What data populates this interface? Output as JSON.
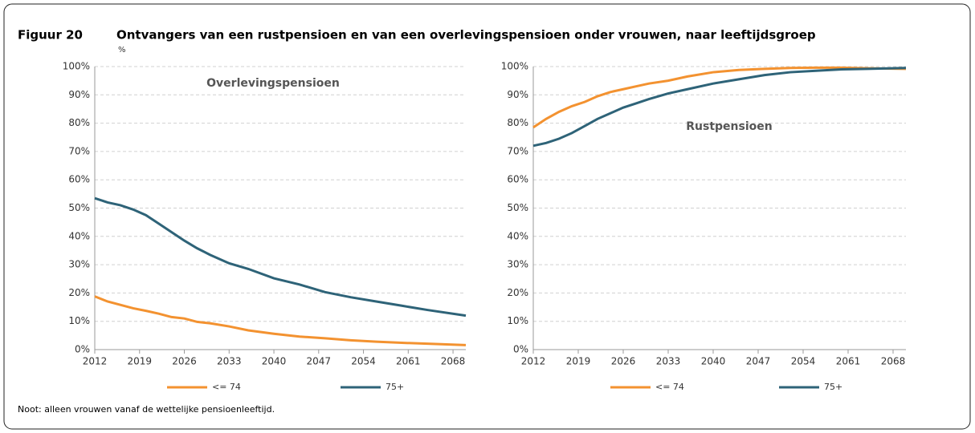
{
  "figure_label": "Figuur 20",
  "title": "Ontvangers van een rustpensioen en van een overlevingspensioen onder vrouwen, naar leeftijdsgroep",
  "subtitle": "%",
  "note": "Noot: alleen vrouwen vanaf de wettelijke pensioenleeftijd.",
  "chart_data": [
    {
      "type": "line",
      "annotation": "Overlevingspensioen",
      "grid": true,
      "x": [
        2012,
        2014,
        2016,
        2018,
        2020,
        2022,
        2024,
        2026,
        2028,
        2030,
        2033,
        2036,
        2040,
        2044,
        2048,
        2052,
        2056,
        2060,
        2064,
        2070
      ],
      "series": [
        {
          "name": "<= 74",
          "color": "#f39230",
          "values": [
            18.8,
            17,
            15.8,
            14.6,
            13.7,
            12.7,
            11.5,
            11.0,
            9.8,
            9.3,
            8.2,
            6.8,
            5.6,
            4.6,
            4.0,
            3.3,
            2.8,
            2.4,
            2.1,
            1.6
          ]
        },
        {
          "name": "75+",
          "color": "#2e6378",
          "values": [
            53.5,
            52,
            51,
            49.5,
            47.5,
            44.5,
            41.5,
            38.5,
            35.8,
            33.5,
            30.5,
            28.5,
            25.2,
            23,
            20.3,
            18.5,
            17,
            15.5,
            14,
            12
          ]
        }
      ],
      "xlim": [
        2012,
        2070
      ],
      "xticks": [
        2012,
        2019,
        2026,
        2033,
        2040,
        2047,
        2054,
        2061,
        2068
      ],
      "ylim": [
        0,
        100
      ],
      "yticks": [
        {
          "value": 0,
          "label": "0%"
        },
        {
          "value": 10,
          "label": "10%"
        },
        {
          "value": 20,
          "label": "20%"
        },
        {
          "value": 30,
          "label": "30%"
        },
        {
          "value": 40,
          "label": "40%"
        },
        {
          "value": 50,
          "label": "50%"
        },
        {
          "value": 60,
          "label": "60%"
        },
        {
          "value": 70,
          "label": "70%"
        },
        {
          "value": 80,
          "label": "80%"
        },
        {
          "value": 90,
          "label": "90%"
        },
        {
          "value": 100,
          "label": "100%"
        }
      ]
    },
    {
      "type": "line",
      "annotation": "Rustpensioen",
      "grid": true,
      "x": [
        2012,
        2014,
        2016,
        2018,
        2020,
        2022,
        2024,
        2026,
        2028,
        2030,
        2033,
        2036,
        2040,
        2044,
        2048,
        2052,
        2056,
        2060,
        2064,
        2070
      ],
      "series": [
        {
          "name": "<= 74",
          "color": "#f39230",
          "values": [
            78.5,
            81.5,
            84,
            86,
            87.5,
            89.5,
            91,
            92,
            93,
            94,
            95,
            96.5,
            98,
            98.8,
            99.2,
            99.5,
            99.6,
            99.6,
            99.4,
            99.2
          ]
        },
        {
          "name": "75+",
          "color": "#2e6378",
          "values": [
            72,
            73,
            74.5,
            76.5,
            79,
            81.5,
            83.5,
            85.5,
            87,
            88.5,
            90.5,
            92,
            94,
            95.5,
            97,
            98,
            98.5,
            99,
            99.2,
            99.5
          ]
        }
      ],
      "xlim": [
        2012,
        2070
      ],
      "xticks": [
        2012,
        2019,
        2026,
        2033,
        2040,
        2047,
        2054,
        2061,
        2068
      ],
      "ylim": [
        0,
        100
      ],
      "yticks": [
        {
          "value": 0,
          "label": "0%"
        },
        {
          "value": 10,
          "label": "10%"
        },
        {
          "value": 20,
          "label": "20%"
        },
        {
          "value": 30,
          "label": "30%"
        },
        {
          "value": 40,
          "label": "40%"
        },
        {
          "value": 50,
          "label": "50%"
        },
        {
          "value": 60,
          "label": "60%"
        },
        {
          "value": 70,
          "label": "70%"
        },
        {
          "value": 80,
          "label": "80%"
        },
        {
          "value": 90,
          "label": "90%"
        },
        {
          "value": 100,
          "label": "100%"
        }
      ]
    }
  ]
}
